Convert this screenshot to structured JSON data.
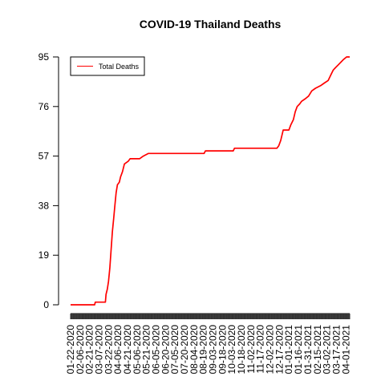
{
  "chart_data": {
    "type": "line",
    "title": "COVID-19 Thailand Deaths",
    "xlabel": "",
    "ylabel": "",
    "ylim": [
      0,
      95
    ],
    "yticks": [
      0,
      19,
      38,
      57,
      76,
      95
    ],
    "start_date": "2020-01-22",
    "end_date": "2021-04-07",
    "xtick_labels": [
      "01-22-2020",
      "02-06-2020",
      "02-21-2020",
      "03-07-2020",
      "03-22-2020",
      "04-06-2020",
      "04-21-2020",
      "05-06-2020",
      "05-21-2020",
      "06-05-2020",
      "06-20-2020",
      "07-05-2020",
      "07-20-2020",
      "08-04-2020",
      "08-19-2020",
      "09-03-2020",
      "09-18-2020",
      "10-03-2020",
      "10-18-2020",
      "11-02-2020",
      "11-17-2020",
      "12-02-2020",
      "12-17-2020",
      "01-01-2021",
      "01-16-2021",
      "01-31-2021",
      "02-15-2021",
      "03-02-2021",
      "03-17-2021",
      "04-01-2021"
    ],
    "legend": {
      "position": "top-left",
      "entries": [
        "Total Deaths"
      ]
    },
    "series": [
      {
        "name": "Total Deaths",
        "color": "#ff0000",
        "points": [
          [
            "2020-01-22",
            0
          ],
          [
            "2020-02-29",
            0
          ],
          [
            "2020-03-01",
            1
          ],
          [
            "2020-03-17",
            1
          ],
          [
            "2020-03-18",
            4
          ],
          [
            "2020-03-20",
            6
          ],
          [
            "2020-03-22",
            9
          ],
          [
            "2020-03-24",
            14
          ],
          [
            "2020-03-26",
            21
          ],
          [
            "2020-03-28",
            28
          ],
          [
            "2020-03-30",
            33
          ],
          [
            "2020-04-01",
            38
          ],
          [
            "2020-04-03",
            43
          ],
          [
            "2020-04-05",
            46
          ],
          [
            "2020-04-08",
            47
          ],
          [
            "2020-04-10",
            49
          ],
          [
            "2020-04-13",
            51
          ],
          [
            "2020-04-16",
            54
          ],
          [
            "2020-04-22",
            55
          ],
          [
            "2020-04-25",
            56
          ],
          [
            "2020-05-10",
            56
          ],
          [
            "2020-05-16",
            57
          ],
          [
            "2020-05-24",
            58
          ],
          [
            "2020-08-20",
            58
          ],
          [
            "2020-08-22",
            59
          ],
          [
            "2020-10-05",
            59
          ],
          [
            "2020-10-07",
            60
          ],
          [
            "2020-12-13",
            60
          ],
          [
            "2020-12-16",
            61
          ],
          [
            "2020-12-19",
            63
          ],
          [
            "2020-12-23",
            67
          ],
          [
            "2021-01-01",
            67
          ],
          [
            "2021-01-04",
            69
          ],
          [
            "2021-01-08",
            71
          ],
          [
            "2021-01-11",
            74
          ],
          [
            "2021-01-14",
            76
          ],
          [
            "2021-01-18",
            77
          ],
          [
            "2021-01-21",
            78
          ],
          [
            "2021-01-27",
            79
          ],
          [
            "2021-02-01",
            80
          ],
          [
            "2021-02-06",
            82
          ],
          [
            "2021-02-12",
            83
          ],
          [
            "2021-02-20",
            84
          ],
          [
            "2021-02-26",
            85
          ],
          [
            "2021-03-04",
            86
          ],
          [
            "2021-03-08",
            88
          ],
          [
            "2021-03-12",
            90
          ],
          [
            "2021-03-16",
            91
          ],
          [
            "2021-03-20",
            92
          ],
          [
            "2021-03-24",
            93
          ],
          [
            "2021-03-28",
            94
          ],
          [
            "2021-04-02",
            95
          ],
          [
            "2021-04-07",
            95
          ]
        ]
      }
    ]
  }
}
